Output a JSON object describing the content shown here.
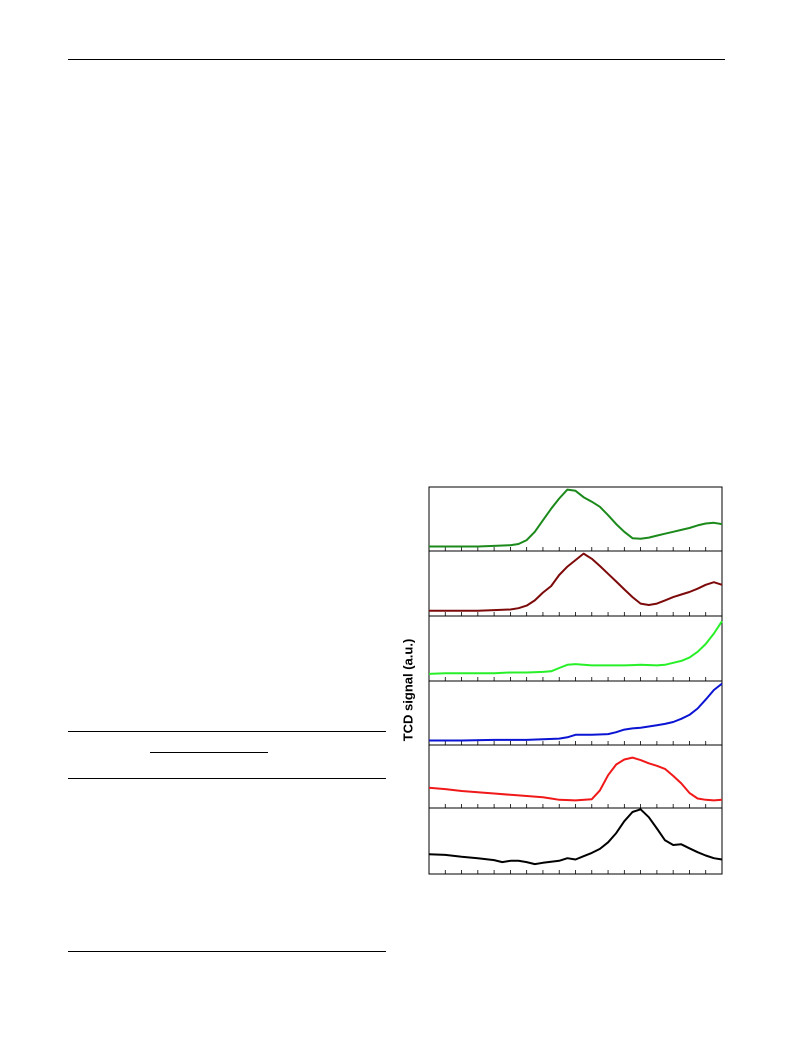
{
  "page": {
    "header_rule": true,
    "table_rules": 4
  },
  "chart_data": {
    "type": "line",
    "layout": "stacked-panels",
    "ylabel": "TCD signal (a.u.)",
    "xlabel": "",
    "title": "",
    "xlim": [
      0,
      18
    ],
    "x_minor_ticks": 18,
    "grid": false,
    "legend": "none",
    "series": [
      {
        "color": "#1b8a1b",
        "ylim": [
          0,
          1
        ],
        "x": [
          0,
          1,
          2,
          3,
          4,
          5,
          5.5,
          6,
          6.5,
          7,
          7.5,
          8,
          8.5,
          9,
          9.5,
          10,
          10.5,
          11,
          11.5,
          12,
          12.5,
          13,
          13.5,
          14,
          14.5,
          15,
          15.5,
          16,
          16.5,
          17,
          17.5,
          18
        ],
        "y": [
          0.07,
          0.07,
          0.07,
          0.07,
          0.08,
          0.09,
          0.11,
          0.17,
          0.3,
          0.48,
          0.66,
          0.82,
          0.96,
          0.94,
          0.84,
          0.77,
          0.69,
          0.56,
          0.42,
          0.3,
          0.2,
          0.19,
          0.21,
          0.24,
          0.27,
          0.3,
          0.33,
          0.36,
          0.4,
          0.43,
          0.44,
          0.42
        ]
      },
      {
        "color": "#7d0a0a",
        "ylim": [
          0,
          1
        ],
        "x": [
          0,
          1,
          2,
          3,
          4,
          5,
          5.5,
          6,
          6.5,
          7,
          7.5,
          8,
          8.5,
          9,
          9.5,
          10,
          10.5,
          11,
          11.5,
          12,
          12.5,
          13,
          13.5,
          14,
          14.5,
          15,
          15.5,
          16,
          16.5,
          17,
          17.5,
          18
        ],
        "y": [
          0.08,
          0.08,
          0.08,
          0.08,
          0.09,
          0.1,
          0.12,
          0.16,
          0.24,
          0.36,
          0.46,
          0.63,
          0.76,
          0.86,
          0.96,
          0.88,
          0.77,
          0.65,
          0.53,
          0.41,
          0.29,
          0.19,
          0.17,
          0.19,
          0.24,
          0.29,
          0.33,
          0.37,
          0.42,
          0.48,
          0.52,
          0.48
        ]
      },
      {
        "color": "#28f028",
        "ylim": [
          0,
          1
        ],
        "x": [
          0,
          1,
          2,
          3,
          4,
          5,
          6,
          7,
          7.5,
          8,
          8.5,
          9,
          9.5,
          10,
          11,
          12,
          13,
          14,
          14.5,
          15,
          15.5,
          16,
          16.5,
          17,
          17.5,
          18
        ],
        "y": [
          0.11,
          0.12,
          0.12,
          0.12,
          0.12,
          0.13,
          0.13,
          0.14,
          0.15,
          0.2,
          0.25,
          0.26,
          0.25,
          0.24,
          0.24,
          0.24,
          0.25,
          0.24,
          0.25,
          0.28,
          0.31,
          0.36,
          0.45,
          0.57,
          0.73,
          0.92
        ]
      },
      {
        "color": "#0a14d2",
        "ylim": [
          0,
          1
        ],
        "x": [
          0,
          2,
          4,
          6,
          7,
          8,
          8.5,
          9,
          10,
          11,
          11.5,
          12,
          12.5,
          13,
          14,
          14.5,
          15,
          15.5,
          16,
          16.5,
          17,
          17.5,
          18
        ],
        "y": [
          0.07,
          0.07,
          0.08,
          0.08,
          0.09,
          0.1,
          0.12,
          0.16,
          0.16,
          0.17,
          0.2,
          0.24,
          0.26,
          0.27,
          0.31,
          0.33,
          0.36,
          0.41,
          0.47,
          0.57,
          0.71,
          0.86,
          0.96
        ]
      },
      {
        "color": "#f01818",
        "ylim": [
          0,
          1
        ],
        "x": [
          0,
          1,
          2,
          3,
          4,
          5,
          6,
          7,
          7.5,
          8,
          9,
          10,
          10.5,
          11,
          11.5,
          12,
          12.5,
          13,
          13.5,
          14,
          14.5,
          15,
          15.5,
          16,
          16.5,
          17,
          17.5,
          18
        ],
        "y": [
          0.32,
          0.3,
          0.27,
          0.25,
          0.23,
          0.21,
          0.19,
          0.17,
          0.15,
          0.13,
          0.12,
          0.14,
          0.28,
          0.52,
          0.69,
          0.77,
          0.8,
          0.76,
          0.71,
          0.67,
          0.62,
          0.51,
          0.39,
          0.24,
          0.15,
          0.13,
          0.12,
          0.13
        ]
      },
      {
        "color": "#000000",
        "ylim": [
          0,
          1
        ],
        "x": [
          0,
          1,
          2,
          3,
          4,
          4.5,
          5,
          5.5,
          6,
          6.5,
          7,
          8,
          8.5,
          9,
          9.5,
          10,
          10.5,
          11,
          11.5,
          12,
          12.5,
          13,
          13.5,
          14,
          14.5,
          15,
          15.5,
          16,
          16.5,
          17,
          17.5,
          18
        ],
        "y": [
          0.3,
          0.29,
          0.26,
          0.24,
          0.21,
          0.18,
          0.2,
          0.2,
          0.18,
          0.15,
          0.17,
          0.2,
          0.24,
          0.22,
          0.27,
          0.32,
          0.38,
          0.48,
          0.62,
          0.8,
          0.94,
          0.98,
          0.86,
          0.69,
          0.51,
          0.44,
          0.45,
          0.39,
          0.33,
          0.28,
          0.24,
          0.22
        ]
      }
    ]
  }
}
